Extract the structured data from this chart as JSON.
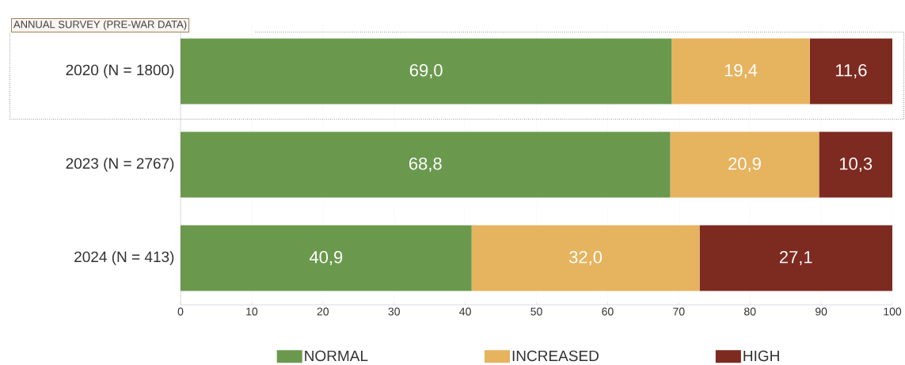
{
  "chart_data": {
    "type": "bar",
    "orientation": "horizontal",
    "stacked": true,
    "categories": [
      "2020 (N = 1800)",
      "2023 (N = 2767)",
      "2024 (N = 413)"
    ],
    "series": [
      {
        "name": "NORMAL",
        "color": "#6a994e",
        "values": [
          69.0,
          68.8,
          40.9
        ],
        "value_labels": [
          "69,0",
          "68,8",
          "40,9"
        ]
      },
      {
        "name": "INCREASED",
        "color": "#e6b35f",
        "values": [
          19.4,
          20.9,
          32.0
        ],
        "value_labels": [
          "19,4",
          "20,9",
          "32,0"
        ]
      },
      {
        "name": "HIGH",
        "color": "#7d2a20",
        "values": [
          11.6,
          10.3,
          27.1
        ],
        "value_labels": [
          "11,6",
          "10,3",
          "27,1"
        ]
      }
    ],
    "xlim": [
      0,
      100
    ],
    "xticks": [
      0,
      10,
      20,
      30,
      40,
      50,
      60,
      70,
      80,
      90,
      100
    ],
    "grid": "x",
    "legend": "bottom",
    "annotations": [
      "ANNUAL SURVEY (PRE-WAR DATA)"
    ]
  }
}
